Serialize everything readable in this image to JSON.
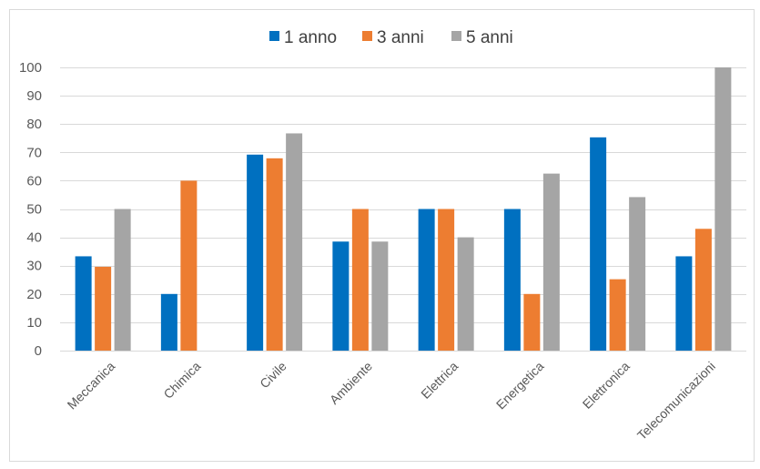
{
  "chart_data": {
    "type": "bar",
    "categories": [
      "Meccanica",
      "Chimica",
      "Civile",
      "Ambiente",
      "Elettrica",
      "Energetica",
      "Elettronica",
      "Telecomunicazioni"
    ],
    "series": [
      {
        "name": "1 anno",
        "color": "#0070C0",
        "values": [
          33.3,
          20,
          69.2,
          38.5,
          50,
          50,
          75.3,
          33.3
        ]
      },
      {
        "name": "3 anni",
        "color": "#ED7D31",
        "values": [
          29.6,
          60,
          67.9,
          50,
          50,
          20,
          25.2,
          43
        ]
      },
      {
        "name": "5 anni",
        "color": "#A5A5A5",
        "values": [
          50,
          0,
          76.7,
          38.5,
          40,
          62.5,
          54.2,
          100
        ]
      }
    ],
    "ylim": [
      0,
      100
    ],
    "yticks": [
      0,
      10,
      20,
      30,
      40,
      50,
      60,
      70,
      80,
      90,
      100
    ],
    "grid": true,
    "legend_position": "top-center"
  }
}
